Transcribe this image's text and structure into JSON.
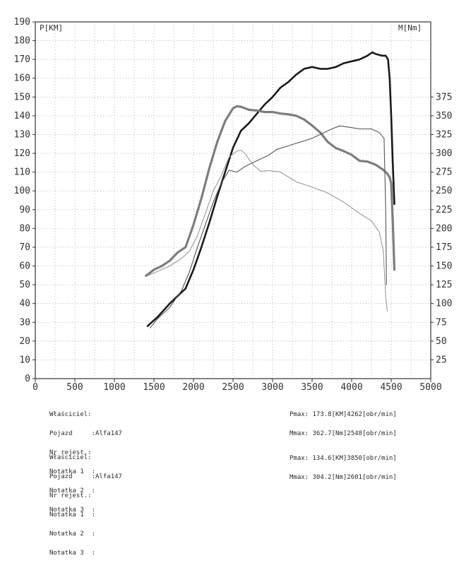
{
  "chart_data": {
    "type": "line",
    "left_axis_label": "P[KM]",
    "right_axis_label": "M[Nm]",
    "x_ticks": [
      0,
      500,
      1000,
      1500,
      2000,
      2500,
      3000,
      3500,
      4000,
      4500,
      5000
    ],
    "y_left_ticks": [
      0,
      10,
      20,
      30,
      40,
      50,
      60,
      70,
      80,
      90,
      100,
      110,
      120,
      130,
      140,
      150,
      160,
      170,
      180,
      190
    ],
    "y_right_ticks": [
      25,
      50,
      75,
      100,
      125,
      150,
      175,
      200,
      225,
      250,
      275,
      300,
      325,
      350,
      375
    ],
    "xlim": [
      0,
      5000
    ],
    "ylim_left": [
      0,
      190
    ],
    "ylim_right": [
      0,
      475
    ],
    "grid": true,
    "series": [
      {
        "axis": "left",
        "color": "#1a1a1a",
        "width": 2.6,
        "x": [
          1420,
          1550,
          1700,
          1900,
          2000,
          2100,
          2200,
          2300,
          2400,
          2500,
          2600,
          2700,
          2800,
          2900,
          3000,
          3100,
          3200,
          3300,
          3400,
          3500,
          3600,
          3700,
          3800,
          3900,
          4000,
          4100,
          4200,
          4262,
          4300,
          4380,
          4430,
          4460,
          4480,
          4500,
          4520,
          4540
        ],
        "y": [
          28,
          33,
          40,
          48,
          58,
          70,
          83,
          97,
          110,
          123,
          132,
          136,
          141,
          146,
          150,
          155,
          158,
          162,
          165,
          166,
          165,
          165,
          166,
          168,
          169,
          170,
          172,
          173.8,
          173,
          172,
          172,
          170,
          160,
          140,
          115,
          93
        ]
      },
      {
        "axis": "right",
        "color": "#7d7d7d",
        "width": 3.2,
        "x": [
          1400,
          1500,
          1600,
          1700,
          1800,
          1900,
          2000,
          2100,
          2200,
          2300,
          2400,
          2500,
          2548,
          2600,
          2700,
          2800,
          2900,
          3000,
          3100,
          3200,
          3300,
          3400,
          3500,
          3600,
          3700,
          3800,
          3900,
          4000,
          4100,
          4200,
          4300,
          4400,
          4450,
          4480,
          4500,
          4520,
          4540
        ],
        "y": [
          137,
          145,
          150,
          157,
          168,
          175,
          205,
          240,
          280,
          315,
          343,
          360,
          362.7,
          362,
          358,
          357,
          355,
          355,
          353,
          352,
          350,
          345,
          337,
          328,
          315,
          307,
          303,
          298,
          290,
          289,
          285,
          278,
          273,
          268,
          260,
          210,
          145
        ]
      },
      {
        "axis": "left",
        "color": "#555555",
        "width": 1.1,
        "x": [
          1450,
          1550,
          1700,
          1850,
          1950,
          2050,
          2150,
          2250,
          2350,
          2450,
          2550,
          2650,
          2750,
          2850,
          2950,
          3050,
          3200,
          3350,
          3500,
          3650,
          3750,
          3850,
          3950,
          4100,
          4250,
          4350,
          4410,
          4430,
          4440
        ],
        "y": [
          27,
          32,
          38,
          47,
          57,
          70,
          82,
          94,
          104,
          111,
          110,
          113,
          115,
          117,
          119,
          122,
          124,
          126,
          128,
          131,
          133,
          134.6,
          134,
          133,
          133,
          131,
          128,
          90,
          50
        ]
      },
      {
        "axis": "right",
        "color": "#9a9a9a",
        "width": 1.1,
        "x": [
          1420,
          1550,
          1700,
          1850,
          1950,
          2050,
          2150,
          2250,
          2350,
          2450,
          2550,
          2601,
          2650,
          2750,
          2850,
          2950,
          3100,
          3300,
          3500,
          3700,
          3900,
          4100,
          4250,
          4350,
          4400,
          4430,
          4450
        ],
        "y": [
          137,
          143,
          150,
          160,
          170,
          190,
          220,
          250,
          270,
          295,
          303,
          304.2,
          300,
          285,
          276,
          277,
          275,
          262,
          255,
          247,
          235,
          220,
          210,
          195,
          170,
          110,
          90
        ]
      }
    ]
  },
  "info_blocks": [
    {
      "lines": [
        {
          "label": "Właściciel:",
          "value": ""
        },
        {
          "label": "Pojazd     :",
          "value": "Alfa147"
        },
        {
          "label": "Nr rejest.:",
          "value": ""
        },
        {
          "label": "Notatka 1  :",
          "value": ""
        },
        {
          "label": "Notatka 2  :",
          "value": ""
        },
        {
          "label": "Notatka 3  :",
          "value": ""
        }
      ],
      "pmax": "Pmax: 173.8[KM]4262[obr/min]",
      "mmax": "Mmax: 362.7[Nm]2548[obr/min]"
    },
    {
      "lines": [
        {
          "label": "Właściciel:",
          "value": ""
        },
        {
          "label": "Pojazd     :",
          "value": "Alfa147"
        },
        {
          "label": "Nr rejest.:",
          "value": ""
        },
        {
          "label": "Notatka 1  :",
          "value": ""
        },
        {
          "label": "Notatka 2  :",
          "value": ""
        },
        {
          "label": "Notatka 3  :",
          "value": ""
        }
      ],
      "pmax": "Pmax: 134.6[KM]3850[obr/min]",
      "mmax": "Mmax: 304.2[Nm]2601[obr/min]"
    }
  ]
}
